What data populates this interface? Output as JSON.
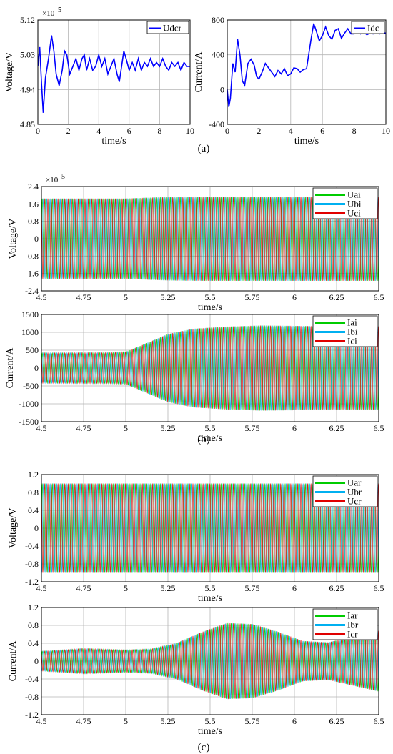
{
  "panel_labels": {
    "a": "(a)",
    "b": "(b)",
    "c": "(c)"
  },
  "chart_data": [
    {
      "id": "a1",
      "type": "line",
      "ylabel": "Voltage/V",
      "xlabel": "time/s",
      "multiplier": "×10",
      "multiplier_exp": "5",
      "xlim": [
        0,
        10
      ],
      "ylim": [
        4.85,
        5.12
      ],
      "xticks": [
        "0",
        "2",
        "4",
        "6",
        "8",
        "10"
      ],
      "yticks": [
        "4.85",
        "4.94",
        "5.03",
        "5.12"
      ],
      "grid": true,
      "legend": "top-right",
      "series": [
        {
          "name": "Udcr",
          "color": "#0000ff",
          "x": [
            0,
            0.12,
            0.25,
            0.35,
            0.5,
            0.7,
            0.9,
            1.05,
            1.2,
            1.4,
            1.6,
            1.75,
            1.9,
            2.1,
            2.3,
            2.5,
            2.7,
            2.9,
            3.05,
            3.2,
            3.4,
            3.6,
            3.8,
            4.0,
            4.2,
            4.4,
            4.6,
            4.8,
            5.0,
            5.2,
            5.35,
            5.5,
            5.65,
            5.8,
            6.0,
            6.2,
            6.4,
            6.6,
            6.8,
            7.0,
            7.2,
            7.4,
            7.6,
            7.8,
            8.0,
            8.2,
            8.4,
            8.6,
            8.8,
            9.0,
            9.2,
            9.4,
            9.6,
            9.8,
            10
          ],
          "y": [
            5.0,
            5.05,
            4.95,
            4.88,
            4.97,
            5.02,
            5.08,
            5.04,
            4.98,
            4.95,
            4.99,
            5.04,
            5.03,
            4.98,
            5.0,
            5.02,
            4.99,
            5.02,
            5.03,
            4.99,
            5.02,
            4.99,
            5.0,
            5.03,
            5.0,
            5.02,
            4.98,
            5.0,
            5.02,
            4.98,
            4.96,
            5.0,
            5.04,
            5.02,
            4.99,
            5.01,
            4.99,
            5.02,
            4.99,
            5.01,
            5.0,
            5.02,
            5.0,
            5.01,
            5.0,
            5.02,
            5.0,
            4.99,
            5.01,
            5.0,
            5.01,
            4.99,
            5.01,
            5.0,
            5.0
          ]
        }
      ]
    },
    {
      "id": "a2",
      "type": "line",
      "ylabel": "Current/A",
      "xlabel": "time/s",
      "xlim": [
        0,
        10
      ],
      "ylim": [
        -400,
        800
      ],
      "xticks": [
        "0",
        "2",
        "4",
        "6",
        "8",
        "10"
      ],
      "yticks": [
        "-400",
        "0",
        "400",
        "800"
      ],
      "grid": true,
      "legend": "top-right",
      "series": [
        {
          "name": "Idc",
          "color": "#0000ff",
          "x": [
            0,
            0.1,
            0.2,
            0.35,
            0.5,
            0.65,
            0.8,
            0.95,
            1.1,
            1.3,
            1.5,
            1.7,
            1.85,
            2.0,
            2.2,
            2.4,
            2.6,
            2.8,
            3.0,
            3.2,
            3.4,
            3.6,
            3.8,
            4.0,
            4.2,
            4.4,
            4.6,
            4.8,
            5.0,
            5.15,
            5.3,
            5.45,
            5.6,
            5.8,
            6.0,
            6.2,
            6.4,
            6.6,
            6.8,
            7.0,
            7.2,
            7.4,
            7.6,
            7.8,
            8.0,
            8.2,
            8.4,
            8.6,
            8.8,
            9.0,
            9.2,
            9.4,
            9.6,
            9.8,
            10
          ],
          "y": [
            0,
            -200,
            -100,
            300,
            200,
            580,
            400,
            100,
            50,
            300,
            350,
            280,
            150,
            120,
            200,
            300,
            250,
            200,
            150,
            220,
            180,
            240,
            160,
            180,
            250,
            240,
            200,
            230,
            240,
            420,
            600,
            760,
            680,
            560,
            620,
            720,
            620,
            580,
            680,
            700,
            590,
            650,
            700,
            640,
            640,
            680,
            640,
            660,
            630,
            650,
            640,
            680,
            640,
            650,
            650
          ]
        }
      ]
    },
    {
      "id": "b1",
      "type": "area",
      "ylabel": "Voltage/V",
      "xlabel": "time/s",
      "multiplier": "×10",
      "multiplier_exp": "5",
      "xlim": [
        4.5,
        6.5
      ],
      "ylim": [
        -2.4,
        2.4
      ],
      "xticks": [
        "4.5",
        "4.75",
        "5",
        "5.25",
        "5.5",
        "5.75",
        "6",
        "6.25",
        "6.5"
      ],
      "yticks": [
        "-2.4",
        "-1.6",
        "-0.8",
        "0",
        "0.8",
        "1.6",
        "2.4"
      ],
      "grid": true,
      "legend": "top-right",
      "envelope": {
        "x": [
          4.5,
          5.0,
          5.25,
          5.5,
          6.0,
          6.5
        ],
        "amplitude": [
          1.85,
          1.85,
          1.92,
          1.94,
          1.94,
          1.94
        ]
      },
      "series": [
        {
          "name": "Uai",
          "color": "#00cc00"
        },
        {
          "name": "Ubi",
          "color": "#00b0f0"
        },
        {
          "name": "Uci",
          "color": "#e00000"
        }
      ]
    },
    {
      "id": "b2",
      "type": "area",
      "ylabel": "Current/A",
      "xlabel": "time/s",
      "xlim": [
        4.5,
        6.5
      ],
      "ylim": [
        -1500,
        1500
      ],
      "xticks": [
        "4.5",
        "4.75",
        "5",
        "5.25",
        "5.5",
        "5.75",
        "6",
        "6.25",
        "6.5"
      ],
      "yticks": [
        "-1500",
        "-1000",
        "-500",
        "0",
        "500",
        "1000",
        "1500"
      ],
      "grid": true,
      "legend": "top-right",
      "envelope": {
        "x": [
          4.5,
          4.9,
          5.0,
          5.1,
          5.25,
          5.4,
          5.6,
          5.8,
          6.0,
          6.2,
          6.5
        ],
        "amplitude": [
          420,
          430,
          450,
          650,
          950,
          1100,
          1160,
          1190,
          1180,
          1170,
          1170
        ]
      },
      "series": [
        {
          "name": "Iai",
          "color": "#00cc00"
        },
        {
          "name": "Ibi",
          "color": "#00b0f0"
        },
        {
          "name": "Ici",
          "color": "#e00000"
        }
      ]
    },
    {
      "id": "c1",
      "type": "area",
      "ylabel": "Voltage/V",
      "xlabel": "time/s",
      "xlim": [
        4.5,
        6.5
      ],
      "ylim": [
        -1.2,
        1.2
      ],
      "xticks": [
        "4.5",
        "4.75",
        "5",
        "5.25",
        "5.5",
        "5.75",
        "6",
        "6.25",
        "6.5"
      ],
      "yticks": [
        "-1.2",
        "-0.8",
        "-0.4",
        "0",
        "0.4",
        "0.8",
        "1.2"
      ],
      "grid": true,
      "legend": "top-right",
      "envelope": {
        "x": [
          4.5,
          6.5
        ],
        "amplitude": [
          1.0,
          1.0
        ]
      },
      "series": [
        {
          "name": "Uar",
          "color": "#00cc00"
        },
        {
          "name": "Ubr",
          "color": "#00b0f0"
        },
        {
          "name": "Ucr",
          "color": "#e00000"
        }
      ]
    },
    {
      "id": "c2",
      "type": "area",
      "ylabel": "Current/A",
      "xlabel": "time/s",
      "xlim": [
        4.5,
        6.5
      ],
      "ylim": [
        -1.2,
        1.2
      ],
      "xticks": [
        "4.5",
        "4.75",
        "5",
        "5.25",
        "5.5",
        "5.75",
        "6",
        "6.25",
        "6.5"
      ],
      "yticks": [
        "-1.2",
        "-0.8",
        "-0.4",
        "0",
        "0.4",
        "0.8",
        "1.2"
      ],
      "grid": true,
      "legend": "top-right",
      "envelope": {
        "x": [
          4.5,
          4.75,
          5.0,
          5.15,
          5.3,
          5.45,
          5.6,
          5.75,
          5.9,
          6.05,
          6.2,
          6.35,
          6.5
        ],
        "amplitude": [
          0.22,
          0.28,
          0.25,
          0.27,
          0.4,
          0.65,
          0.85,
          0.83,
          0.66,
          0.45,
          0.42,
          0.55,
          0.68
        ]
      },
      "series": [
        {
          "name": "Iar",
          "color": "#00cc00"
        },
        {
          "name": "Ibr",
          "color": "#00b0f0"
        },
        {
          "name": "Icr",
          "color": "#e00000"
        }
      ]
    }
  ]
}
